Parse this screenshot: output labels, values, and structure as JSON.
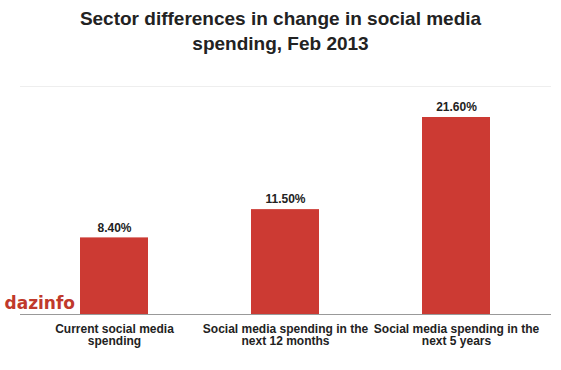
{
  "chart_data": {
    "type": "bar",
    "title": "Sector differences in change in social media spending, Feb 2013",
    "categories": [
      "Current social media spending",
      "Social media spending in the next 12 months",
      "Social media spending in the next 5 years"
    ],
    "values": [
      8.4,
      11.5,
      21.6
    ],
    "value_labels": [
      "8.40%",
      "11.50%",
      "21.60%"
    ],
    "color": "#cc3a33",
    "ylim": [
      0,
      25
    ],
    "grid": false,
    "data_labels": true,
    "tick_labels": "x",
    "annotations": [
      "dazinfo"
    ]
  }
}
